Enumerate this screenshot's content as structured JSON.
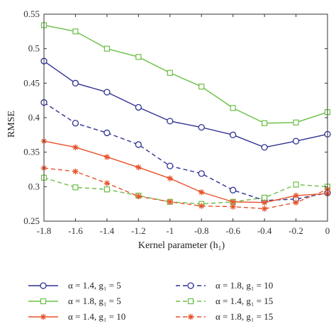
{
  "chart_data": {
    "type": "line",
    "xlabel": "Kernel parameter (h₁)",
    "ylabel": "RMSE",
    "xlim": [
      -1.8,
      0
    ],
    "ylim": [
      0.25,
      0.55
    ],
    "x": [
      -1.8,
      -1.6,
      -1.4,
      -1.2,
      -1.0,
      -0.8,
      -0.6,
      -0.4,
      -0.2,
      0
    ],
    "x_tick_labels": [
      "-1.8",
      "-1.6",
      "-1.4",
      "-1.2",
      "-1",
      "-0.8",
      "-0.6",
      "-0.4",
      "-0.2",
      "0"
    ],
    "y_ticks": [
      0.25,
      0.3,
      0.35,
      0.4,
      0.45,
      0.5,
      0.55
    ],
    "y_tick_labels": [
      "0.25",
      "0.3",
      "0.35",
      "0.4",
      "0.45",
      "0.5",
      "0.55"
    ],
    "grid": false,
    "legend_position": "bottom",
    "series": [
      {
        "name": "α = 1.4, g₁ = 5",
        "color": "#2e3192",
        "line": "solid",
        "marker": "circle",
        "values": [
          0.482,
          0.45,
          0.437,
          0.415,
          0.395,
          0.386,
          0.375,
          0.357,
          0.366,
          0.376
        ]
      },
      {
        "name": "α = 1.8, g₁ = 10",
        "color": "#2e3192",
        "line": "dashed",
        "marker": "circle",
        "values": [
          0.422,
          0.392,
          0.378,
          0.361,
          0.33,
          0.319,
          0.295,
          0.28,
          0.282,
          0.291
        ]
      },
      {
        "name": "α = 1.8, g₁ = 5",
        "color": "#6abf45",
        "line": "solid",
        "marker": "square",
        "values": [
          0.534,
          0.525,
          0.5,
          0.488,
          0.465,
          0.445,
          0.414,
          0.392,
          0.393,
          0.408
        ]
      },
      {
        "name": "α = 1.4, g₁ = 15",
        "color": "#6abf45",
        "line": "dashed",
        "marker": "square",
        "values": [
          0.313,
          0.299,
          0.296,
          0.287,
          0.278,
          0.275,
          0.278,
          0.284,
          0.303,
          0.3
        ]
      },
      {
        "name": "α = 1.4, g₁ = 10",
        "color": "#e8512a",
        "line": "solid",
        "marker": "asterisk",
        "values": [
          0.366,
          0.357,
          0.343,
          0.328,
          0.312,
          0.292,
          0.278,
          0.277,
          0.287,
          0.29
        ]
      },
      {
        "name": "α = 1.8, g₁ = 15",
        "color": "#e8512a",
        "line": "dashed",
        "marker": "asterisk",
        "values": [
          0.327,
          0.322,
          0.305,
          0.286,
          0.278,
          0.272,
          0.271,
          0.268,
          0.277,
          0.296
        ]
      }
    ]
  }
}
